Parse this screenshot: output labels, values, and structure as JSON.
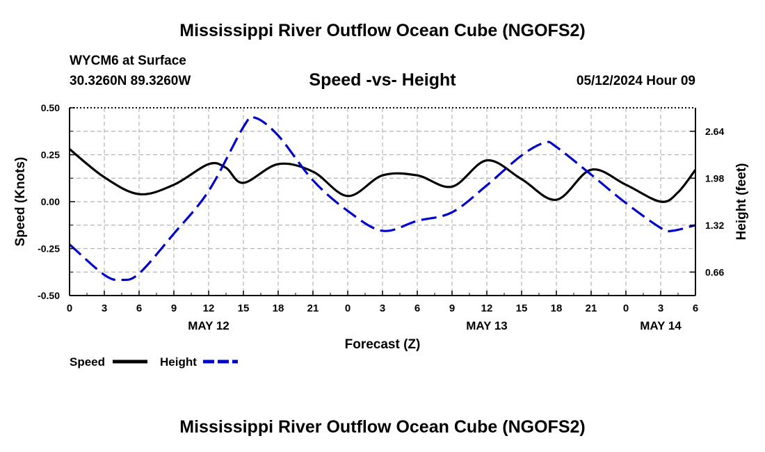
{
  "header": {
    "title": "Mississippi River Outflow Ocean Cube (NGOFS2)",
    "station": "WYCM6 at Surface",
    "coords": "30.3260N  89.3260W",
    "date_hour": "05/12/2024 Hour 09"
  },
  "footer": {
    "title": "Mississippi River Outflow Ocean Cube (NGOFS2)"
  },
  "colors": {
    "speed": "#000000",
    "height": "#0000cc",
    "grid": "#b4b4b4"
  },
  "chart_data": {
    "type": "line",
    "title": "Speed -vs- Height",
    "xlabel": "Forecast (Z)",
    "ylabel_left": "Speed (Knots)",
    "ylabel_right": "Height (feet)",
    "xlim": [
      0,
      54
    ],
    "ylim_left": [
      -0.5,
      0.5
    ],
    "ylim_right": [
      0.33,
      2.97
    ],
    "x_ticks": [
      0,
      3,
      6,
      9,
      12,
      15,
      18,
      21,
      24,
      27,
      30,
      33,
      36,
      39,
      42,
      45,
      48,
      51,
      54
    ],
    "x_tick_labels": [
      "0",
      "3",
      "6",
      "9",
      "12",
      "15",
      "18",
      "21",
      "0",
      "3",
      "6",
      "9",
      "12",
      "15",
      "18",
      "21",
      "0",
      "3",
      "6"
    ],
    "date_labels": [
      {
        "label": "MAY 12",
        "x": 12
      },
      {
        "label": "MAY 13",
        "x": 36
      },
      {
        "label": "MAY 14",
        "x": 51
      }
    ],
    "y_left_ticks": [
      -0.5,
      -0.25,
      0.0,
      0.25,
      0.5
    ],
    "y_left_tick_labels": [
      "-0.50",
      "-0.25",
      "0.00",
      "0.25",
      "0.50"
    ],
    "y_right_ticks": [
      0.66,
      1.32,
      1.98,
      2.64
    ],
    "y_right_tick_labels": [
      "0.66",
      "1.32",
      "1.98",
      "2.64"
    ],
    "grid": true,
    "legend": "bottom-left",
    "series": [
      {
        "name": "Speed",
        "axis": "left",
        "style": "solid",
        "x": [
          0,
          3,
          6,
          9,
          12,
          13.5,
          15,
          18,
          21,
          24,
          27,
          30,
          33,
          36,
          39,
          42,
          45,
          48,
          51,
          52.5,
          54
        ],
        "y": [
          0.28,
          0.13,
          0.04,
          0.09,
          0.2,
          0.18,
          0.1,
          0.2,
          0.16,
          0.03,
          0.14,
          0.14,
          0.08,
          0.22,
          0.12,
          0.01,
          0.17,
          0.09,
          0.0,
          0.05,
          0.17
        ]
      },
      {
        "name": "Height",
        "axis": "right",
        "style": "dashed",
        "x": [
          0,
          3,
          4.5,
          6,
          9,
          12,
          15,
          16,
          18,
          21,
          24,
          27,
          30,
          33,
          36,
          39,
          41,
          42,
          45,
          48,
          51,
          52,
          54
        ],
        "y": [
          1.05,
          0.62,
          0.55,
          0.64,
          1.2,
          1.8,
          2.7,
          2.83,
          2.58,
          1.95,
          1.52,
          1.24,
          1.38,
          1.5,
          1.88,
          2.3,
          2.48,
          2.42,
          2.03,
          1.63,
          1.28,
          1.24,
          1.32
        ]
      }
    ]
  }
}
